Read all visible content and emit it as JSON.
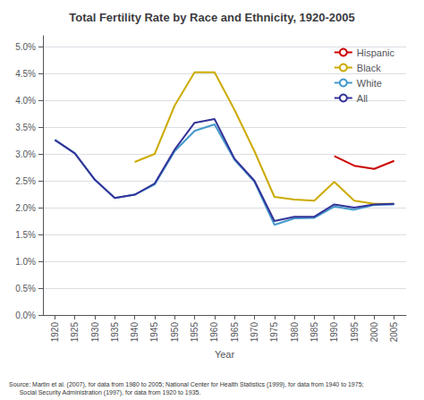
{
  "chart_data": {
    "type": "line",
    "title": "Total Fertility Rate by Race and Ethnicity, 1920-2005",
    "xlabel": "Year",
    "annotations": [
      "Source: Martin et al. (2007), for data from 1980 to 2005; National Center for Health Statistics (1999), for data from 1940 to 1975;\n      Social Security Administration (1997), for data from 1920 to 1935."
    ],
    "series": [
      {
        "name": "Hispanic",
        "color": "#cc0000",
        "x": [
          1990,
          1995,
          2000,
          2005
        ],
        "values": [
          2.96,
          2.78,
          2.72,
          2.87
        ]
      },
      {
        "name": "Black",
        "color": "#ccaa00",
        "x": [
          1940,
          1945,
          1950,
          1955,
          1960,
          1965,
          1970,
          1975,
          1980,
          1985,
          1990,
          1995,
          2000,
          2005
        ],
        "values": [
          2.85,
          3.0,
          3.9,
          4.52,
          4.52,
          3.82,
          3.05,
          2.2,
          2.15,
          2.13,
          2.48,
          2.13,
          2.07,
          2.07
        ]
      },
      {
        "name": "White",
        "color": "#4499cc",
        "x": [
          1920,
          1925,
          1930,
          1935,
          1940,
          1945,
          1950,
          1955,
          1960,
          1965,
          1970,
          1975,
          1980,
          1985,
          1990,
          1995,
          2000,
          2005
        ],
        "values": [
          3.26,
          3.01,
          2.52,
          2.18,
          2.24,
          2.43,
          3.05,
          3.43,
          3.55,
          2.89,
          2.48,
          1.68,
          1.8,
          1.81,
          2.02,
          1.96,
          2.05,
          2.06
        ]
      },
      {
        "name": "All",
        "color": "#333399",
        "x": [
          1920,
          1925,
          1930,
          1935,
          1940,
          1945,
          1950,
          1955,
          1960,
          1965,
          1970,
          1975,
          1980,
          1985,
          1990,
          1995,
          2000,
          2005
        ],
        "values": [
          3.26,
          3.01,
          2.52,
          2.18,
          2.24,
          2.45,
          3.08,
          3.58,
          3.65,
          2.91,
          2.5,
          1.75,
          1.83,
          1.83,
          2.06,
          2.0,
          2.06,
          2.07
        ]
      }
    ],
    "xlim": [
      1917,
      2008
    ],
    "xticks": [
      1920,
      1925,
      1930,
      1935,
      1940,
      1945,
      1950,
      1955,
      1960,
      1965,
      1970,
      1975,
      1980,
      1985,
      1990,
      1995,
      2000,
      2005
    ],
    "ylim": [
      0.0,
      5.2
    ],
    "yticks": [
      {
        "value": 0.0,
        "label": "0.0%"
      },
      {
        "value": 0.5,
        "label": "0.5%"
      },
      {
        "value": 1.0,
        "label": "1.0%"
      },
      {
        "value": 1.5,
        "label": "1.5%"
      },
      {
        "value": 2.0,
        "label": "2.0%"
      },
      {
        "value": 2.5,
        "label": "2.5%"
      },
      {
        "value": 3.0,
        "label": "3.0%"
      },
      {
        "value": 3.5,
        "label": "3.5%"
      },
      {
        "value": 4.0,
        "label": "4.0%"
      },
      {
        "value": 4.5,
        "label": "4.5%"
      },
      {
        "value": 5.0,
        "label": "5.0%"
      }
    ],
    "grid": "y",
    "legend": "upper right"
  }
}
